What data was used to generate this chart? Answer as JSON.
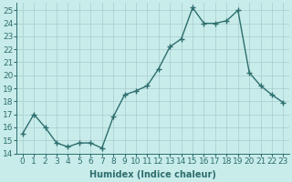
{
  "x": [
    0,
    1,
    2,
    3,
    4,
    5,
    6,
    7,
    8,
    9,
    10,
    11,
    12,
    13,
    14,
    15,
    16,
    17,
    18,
    19,
    20,
    21,
    22,
    23
  ],
  "y": [
    15.5,
    17.0,
    16.0,
    14.8,
    14.5,
    14.8,
    14.8,
    14.4,
    16.8,
    18.5,
    18.8,
    19.2,
    20.5,
    22.2,
    22.8,
    25.2,
    24.0,
    24.0,
    24.2,
    25.0,
    20.2,
    19.2,
    18.5,
    17.9
  ],
  "line_color": "#2d6e6e",
  "marker": "+",
  "marker_size": 4,
  "bg_color": "#c8ecea",
  "grid_color": "#a8cccc",
  "xlabel": "Humidex (Indice chaleur)",
  "ylabel_ticks": [
    14,
    15,
    16,
    17,
    18,
    19,
    20,
    21,
    22,
    23,
    24,
    25
  ],
  "xlim": [
    -0.5,
    23.5
  ],
  "ylim": [
    14,
    25.6
  ],
  "xlabel_fontsize": 7,
  "tick_fontsize": 6.5
}
